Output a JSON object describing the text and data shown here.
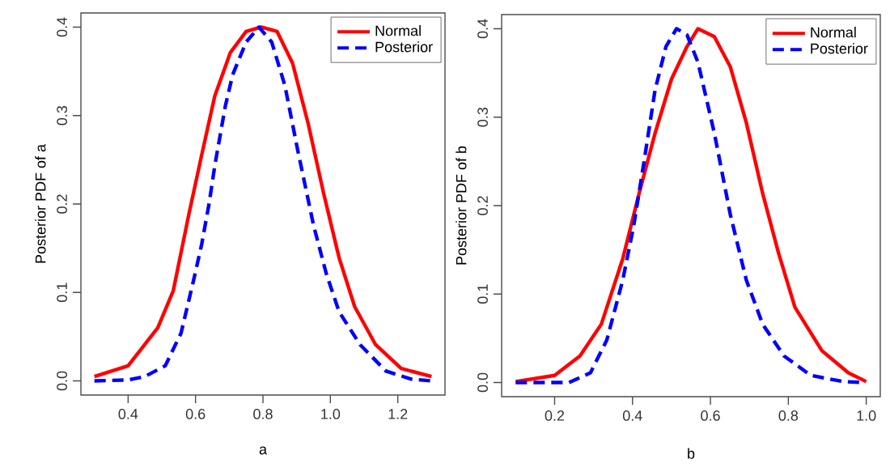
{
  "chart_data": [
    {
      "type": "line",
      "xlabel": "a",
      "ylabel": "Posterior PDF of a",
      "xlim": [
        0.26,
        1.34
      ],
      "ylim": [
        -0.016,
        0.416
      ],
      "xticks": [
        0.4,
        0.6,
        0.8,
        {
          "value": 1.0,
          "label": "1.0"
        },
        1.2
      ],
      "yticks": [
        {
          "value": 0,
          "label": "0.0"
        },
        0.1,
        0.2,
        0.3,
        0.4
      ],
      "legend": "top right",
      "series": [
        {
          "name": "Normal",
          "color": "#ff0000",
          "line_style": "solid",
          "x": [
            0.3,
            0.4,
            0.488,
            0.534,
            0.58,
            0.618,
            0.657,
            0.703,
            0.75,
            0.795,
            0.842,
            0.888,
            0.934,
            0.98,
            1.026,
            1.072,
            1.134,
            1.21,
            1.3
          ],
          "values": [
            0.005,
            0.017,
            0.06,
            0.102,
            0.188,
            0.255,
            0.322,
            0.371,
            0.395,
            0.4,
            0.395,
            0.359,
            0.291,
            0.212,
            0.139,
            0.084,
            0.041,
            0.014,
            0.005
          ]
        },
        {
          "name": "Posterior",
          "color": "#0000ff",
          "line_style": "dashed",
          "x": [
            0.3,
            0.4,
            0.45,
            0.51,
            0.557,
            0.595,
            0.618,
            0.64,
            0.657,
            0.688,
            0.71,
            0.75,
            0.788,
            0.826,
            0.865,
            0.903,
            0.95,
            0.988,
            1.026,
            1.088,
            1.165,
            1.24,
            1.3
          ],
          "values": [
            0,
            0.001,
            0.005,
            0.017,
            0.054,
            0.115,
            0.154,
            0.2,
            0.243,
            0.31,
            0.346,
            0.383,
            0.4,
            0.383,
            0.334,
            0.261,
            0.176,
            0.121,
            0.078,
            0.041,
            0.011,
            0.002,
            0
          ]
        }
      ]
    },
    {
      "type": "line",
      "xlabel": "b",
      "ylabel": "Posterior PDF of b",
      "xlim": [
        0.064,
        1.036
      ],
      "ylim": [
        -0.016,
        0.416
      ],
      "xticks": [
        0.2,
        0.4,
        0.6,
        0.8,
        {
          "value": 1.0,
          "label": "1.0"
        }
      ],
      "yticks": [
        {
          "value": 0,
          "label": "0.0"
        },
        0.1,
        0.2,
        0.3,
        0.4
      ],
      "legend": "top right",
      "series": [
        {
          "name": "Normal",
          "color": "#ff0000",
          "line_style": "solid",
          "x": [
            0.1,
            0.2,
            0.265,
            0.32,
            0.375,
            0.417,
            0.458,
            0.5,
            0.54,
            0.568,
            0.61,
            0.651,
            0.692,
            0.734,
            0.775,
            0.817,
            0.886,
            0.954,
            1.0
          ],
          "values": [
            0.001,
            0.008,
            0.03,
            0.066,
            0.14,
            0.214,
            0.282,
            0.343,
            0.38,
            0.4,
            0.391,
            0.357,
            0.294,
            0.214,
            0.146,
            0.085,
            0.036,
            0.011,
            0.001
          ]
        },
        {
          "name": "Posterior",
          "color": "#0000ff",
          "line_style": "dashed",
          "x": [
            0.1,
            0.237,
            0.292,
            0.334,
            0.375,
            0.403,
            0.43,
            0.458,
            0.486,
            0.513,
            0.54,
            0.568,
            0.61,
            0.651,
            0.692,
            0.734,
            0.789,
            0.858,
            0.941,
            0.996
          ],
          "values": [
            0,
            0,
            0.011,
            0.048,
            0.116,
            0.177,
            0.251,
            0.331,
            0.38,
            0.4,
            0.393,
            0.362,
            0.282,
            0.19,
            0.116,
            0.066,
            0.03,
            0.008,
            0.001,
            0
          ]
        }
      ]
    }
  ]
}
